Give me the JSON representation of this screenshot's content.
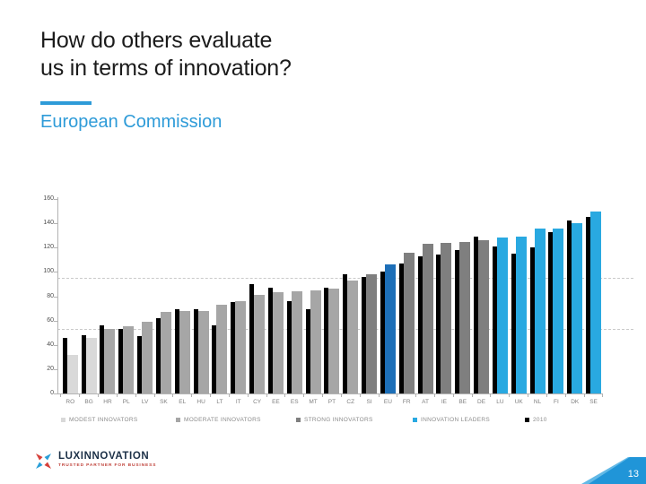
{
  "slide": {
    "title_line1": "How do others evaluate",
    "title_line2": "us in terms of innovation?",
    "subtitle": "European Commission",
    "page_number": "13"
  },
  "footer": {
    "brand": "LUXINNOVATION",
    "tagline": "TRUSTED PARTNER FOR BUSINESS"
  },
  "chart_data": {
    "type": "bar",
    "title": "",
    "xlabel": "",
    "ylabel": "",
    "ylim": [
      0,
      160
    ],
    "ytick_step": 20,
    "grid": "dashed-thresholds-only",
    "threshold_lines": [
      53,
      95
    ],
    "legend_position": "bottom",
    "categories": [
      "RO",
      "BG",
      "HR",
      "PL",
      "LV",
      "SK",
      "EL",
      "HU",
      "LT",
      "IT",
      "CY",
      "EE",
      "ES",
      "MT",
      "PT",
      "CZ",
      "SI",
      "EU",
      "FR",
      "AT",
      "IE",
      "BE",
      "DE",
      "LU",
      "UK",
      "NL",
      "FI",
      "DK",
      "SE"
    ],
    "category_groups": [
      "modest",
      "modest",
      "moderate",
      "moderate",
      "moderate",
      "moderate",
      "moderate",
      "moderate",
      "moderate",
      "moderate",
      "moderate",
      "moderate",
      "moderate",
      "moderate",
      "moderate",
      "moderate",
      "strong",
      "eu",
      "strong",
      "strong",
      "strong",
      "strong",
      "strong",
      "leader",
      "leader",
      "leader",
      "leader",
      "leader",
      "leader"
    ],
    "series": [
      {
        "name": "current_performance",
        "values": [
          32,
          46,
          53,
          55,
          59,
          67,
          68,
          68,
          73,
          76,
          81,
          83,
          84,
          85,
          86,
          93,
          98,
          106,
          116,
          123,
          124,
          125,
          126,
          128,
          129,
          136,
          136,
          140,
          150
        ]
      },
      {
        "name": "2010",
        "values": [
          46,
          48,
          56,
          53,
          47,
          62,
          69,
          69,
          56,
          75,
          90,
          87,
          76,
          69,
          87,
          98,
          96,
          100,
          107,
          113,
          114,
          118,
          129,
          121,
          115,
          120,
          133,
          142,
          145
        ]
      }
    ],
    "colors": {
      "modest": "#d9d9d9",
      "moderate": "#a6a6a6",
      "strong": "#7f7f7f",
      "leader": "#29a9e1",
      "eu": "#1d6fb8",
      "y2010": "#000000",
      "accent": "#2e9bd8",
      "corner": "#2095d8"
    },
    "legend": [
      {
        "label": "MODEST INNOVATORS",
        "color_key": "modest"
      },
      {
        "label": "MODERATE INNOVATORS",
        "color_key": "moderate"
      },
      {
        "label": "STRONG INNOVATORS",
        "color_key": "strong"
      },
      {
        "label": "INNOVATION LEADERS",
        "color_key": "leader"
      },
      {
        "label": "2010",
        "color_key": "y2010"
      }
    ]
  }
}
